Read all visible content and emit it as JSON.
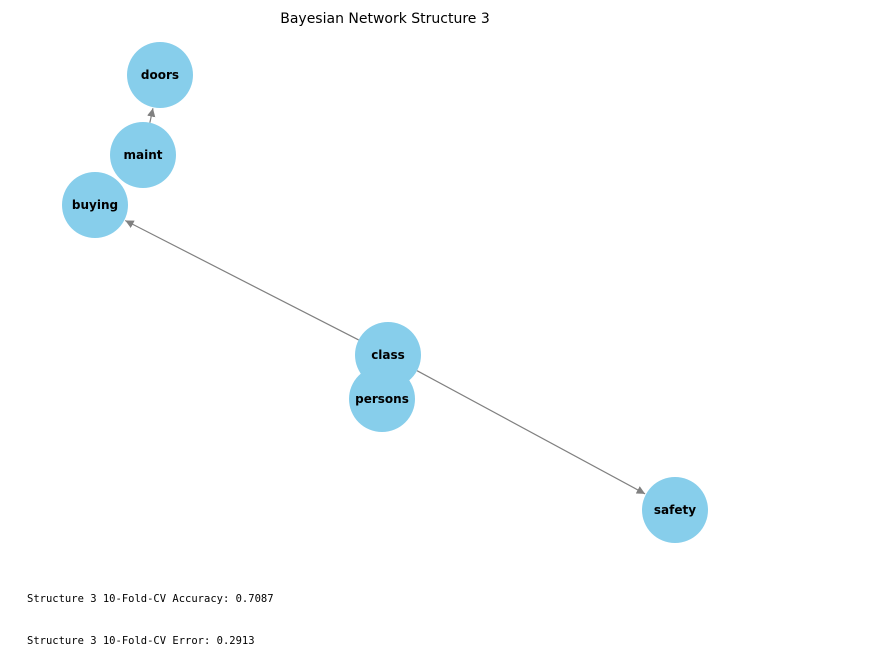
{
  "title": "Bayesian Network Structure 3",
  "node_color": "#87ceeb",
  "edge_color": "#808080",
  "nodes": [
    {
      "id": "doors",
      "label": "doors"
    },
    {
      "id": "maint",
      "label": "maint"
    },
    {
      "id": "buying",
      "label": "buying"
    },
    {
      "id": "class",
      "label": "class"
    },
    {
      "id": "persons",
      "label": "persons"
    },
    {
      "id": "safety",
      "label": "safety"
    }
  ],
  "edges": [
    {
      "from": "maint",
      "to": "doors"
    },
    {
      "from": "class",
      "to": "buying"
    },
    {
      "from": "class",
      "to": "safety"
    }
  ],
  "metrics": {
    "accuracy_text": "Structure 3 10-Fold-CV Accuracy: 0.7087",
    "error_text": "Structure 3 10-Fold-CV Error: 0.2913"
  }
}
